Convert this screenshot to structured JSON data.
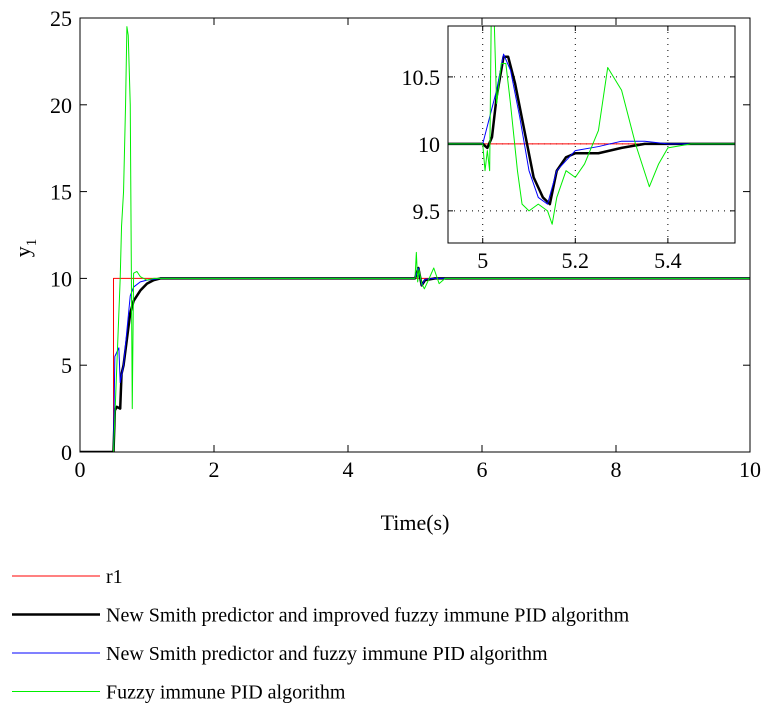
{
  "chart_data": [
    {
      "type": "line",
      "xlabel": "Time(s)",
      "ylabel": "y",
      "ylabel_subscript": "1",
      "xlim": [
        0,
        10
      ],
      "ylim": [
        0,
        25
      ],
      "xticks": [
        0,
        2,
        4,
        6,
        8,
        10
      ],
      "yticks": [
        0,
        5,
        10,
        15,
        20,
        25
      ],
      "grid": false,
      "legend": "below",
      "series": [
        {
          "name": "r1",
          "color": "#ff0000",
          "linewidth": 1,
          "x": [
            0,
            0.5,
            0.5,
            10
          ],
          "values": [
            0,
            0,
            10,
            10
          ]
        },
        {
          "name": "New Smith predictor and improved fuzzy immune PID algorithm",
          "color": "#000000",
          "linewidth": 2.5,
          "x": [
            0,
            0.5,
            0.52,
            0.55,
            0.6,
            0.62,
            0.65,
            0.7,
            0.75,
            0.8,
            0.9,
            1.0,
            1.1,
            1.2,
            1.3,
            5.0,
            5.05,
            5.1,
            5.15,
            5.3,
            10
          ],
          "values": [
            0,
            0,
            2.4,
            2.6,
            2.5,
            4.5,
            5,
            6.5,
            8,
            8.7,
            9.3,
            9.7,
            9.9,
            10,
            10,
            10,
            10.6,
            9.6,
            9.9,
            10,
            10
          ]
        },
        {
          "name": "New Smith predictor and fuzzy immune PID algorithm",
          "color": "#0000ff",
          "linewidth": 1,
          "x": [
            0,
            0.5,
            0.52,
            0.58,
            0.6,
            0.65,
            0.7,
            0.75,
            0.8,
            0.9,
            1.0,
            1.2,
            5.0,
            5.05,
            5.1,
            5.15,
            5.3,
            10
          ],
          "values": [
            0,
            0,
            5.5,
            6,
            4,
            5,
            7,
            9,
            9.5,
            9.8,
            9.9,
            10,
            10,
            10.6,
            9.6,
            9.95,
            10,
            10
          ]
        },
        {
          "name": "Fuzzy immune PID algorithm",
          "color": "#00ee00",
          "linewidth": 1,
          "x": [
            0,
            0.5,
            0.55,
            0.6,
            0.62,
            0.65,
            0.68,
            0.7,
            0.72,
            0.75,
            0.78,
            0.8,
            0.85,
            0.9,
            1.0,
            1.1,
            5.0,
            5.02,
            5.04,
            5.06,
            5.1,
            5.14,
            5.2,
            5.28,
            5.36,
            5.45,
            10
          ],
          "values": [
            0,
            0,
            5,
            10,
            13,
            15,
            20,
            24.5,
            24,
            20,
            2.5,
            10.3,
            10.4,
            10.1,
            9.9,
            10,
            10,
            11.5,
            9.8,
            10.5,
            9.7,
            9.4,
            9.9,
            10.6,
            9.7,
            10,
            10
          ]
        }
      ]
    },
    {
      "type": "line",
      "xlim": [
        4.925,
        5.545
      ],
      "ylim": [
        9.26,
        10.88
      ],
      "xticks": [
        5,
        5.2,
        5.4
      ],
      "yticks": [
        9.5,
        10,
        10.5
      ],
      "grid": true,
      "series": [
        {
          "color": "#ff0000",
          "linewidth": 1,
          "x": [
            4.925,
            5.545
          ],
          "values": [
            10,
            10
          ]
        },
        {
          "color": "#000000",
          "linewidth": 2.5,
          "x": [
            4.925,
            5.0,
            5.01,
            5.02,
            5.03,
            5.045,
            5.055,
            5.07,
            5.09,
            5.11,
            5.13,
            5.145,
            5.16,
            5.18,
            5.2,
            5.25,
            5.3,
            5.35,
            5.545
          ],
          "values": [
            10,
            10,
            9.97,
            10.05,
            10.35,
            10.65,
            10.65,
            10.45,
            10.1,
            9.75,
            9.6,
            9.55,
            9.8,
            9.9,
            9.93,
            9.93,
            9.97,
            10,
            10
          ]
        },
        {
          "color": "#0000ff",
          "linewidth": 1,
          "x": [
            4.925,
            5.0,
            5.015,
            5.03,
            5.045,
            5.06,
            5.08,
            5.1,
            5.12,
            5.14,
            5.16,
            5.2,
            5.25,
            5.3,
            5.35,
            5.4,
            5.545
          ],
          "values": [
            10,
            10,
            10.2,
            10.4,
            10.67,
            10.55,
            10.2,
            9.8,
            9.6,
            9.55,
            9.8,
            9.95,
            9.98,
            10.02,
            10.02,
            10,
            10
          ]
        },
        {
          "color": "#00ee00",
          "linewidth": 1,
          "x": [
            4.925,
            5.0,
            5.005,
            5.01,
            5.015,
            5.02,
            5.03,
            5.04,
            5.05,
            5.06,
            5.075,
            5.085,
            5.1,
            5.12,
            5.14,
            5.15,
            5.16,
            5.18,
            5.2,
            5.22,
            5.25,
            5.27,
            5.3,
            5.33,
            5.36,
            5.38,
            5.4,
            5.45,
            5.545
          ],
          "values": [
            10,
            10,
            9.8,
            9.95,
            9.8,
            11.5,
            10.3,
            10.6,
            10.6,
            10.3,
            9.8,
            9.55,
            9.5,
            9.55,
            9.5,
            9.4,
            9.6,
            9.8,
            9.75,
            9.85,
            10.1,
            10.57,
            10.4,
            10.0,
            9.68,
            9.85,
            9.97,
            10,
            10
          ]
        }
      ]
    }
  ]
}
